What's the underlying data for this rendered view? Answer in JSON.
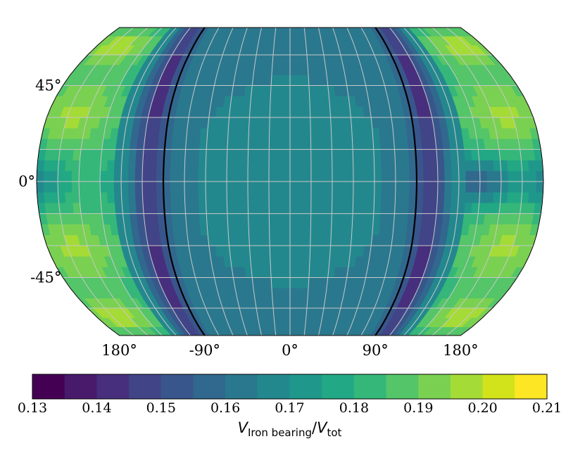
{
  "chart_data": {
    "type": "heatmap",
    "projection": "robinson",
    "lat_extent": [
      -75,
      75
    ],
    "lon_range": [
      -180,
      180
    ],
    "title": "",
    "grid": true,
    "lat_ticks": [
      {
        "value": 45,
        "label": "45°"
      },
      {
        "value": 0,
        "label": "0°"
      },
      {
        "value": -45,
        "label": "-45°"
      }
    ],
    "lon_ticks": [
      {
        "value": -180,
        "label": "180°"
      },
      {
        "value": -90,
        "label": "-90°"
      },
      {
        "value": 0,
        "label": "0°"
      },
      {
        "value": 90,
        "label": "90°"
      },
      {
        "value": 180,
        "label": "180°"
      }
    ],
    "terminator_lons": [
      -90,
      90
    ],
    "colorbar": {
      "label_main": "V",
      "label_main_sub": "Iron bearing",
      "label_sep": "/",
      "label_denom": "V",
      "label_denom_sub": "tot",
      "min": 0.13,
      "max": 0.21,
      "tick_labels": [
        "0.13",
        "0.14",
        "0.15",
        "0.16",
        "0.17",
        "0.18",
        "0.19",
        "0.20",
        "0.21"
      ],
      "levels": [
        0.13,
        0.135,
        0.14,
        0.145,
        0.15,
        0.155,
        0.16,
        0.165,
        0.17,
        0.175,
        0.18,
        0.185,
        0.19,
        0.195,
        0.2,
        0.205,
        0.21
      ],
      "colors": [
        "#440154",
        "#481a6c",
        "#472f7d",
        "#414487",
        "#39568c",
        "#31688e",
        "#2a788e",
        "#23888e",
        "#1f988b",
        "#22a884",
        "#35b779",
        "#54c568",
        "#7ad151",
        "#a5db36",
        "#d2e21b",
        "#fde725"
      ]
    },
    "field_description": {
      "dayside_base": 0.162,
      "dayside_patches": [
        {
          "lon": 0,
          "lat": 22,
          "value": 0.168,
          "w_lon": 50,
          "w_lat": 22
        },
        {
          "lon": 0,
          "lat": -22,
          "value": 0.168,
          "w_lon": 50,
          "w_lat": 22
        },
        {
          "lon": 0,
          "lat": 0,
          "value": 0.158,
          "w_lon": 22,
          "w_lat": 10
        }
      ],
      "terminator_min": 0.142,
      "nightside_peak": 0.196,
      "nightside_peak_lats": [
        32,
        -32,
        65,
        -65
      ],
      "equator_east_dip": {
        "lon": 135,
        "value": 0.152
      }
    }
  }
}
